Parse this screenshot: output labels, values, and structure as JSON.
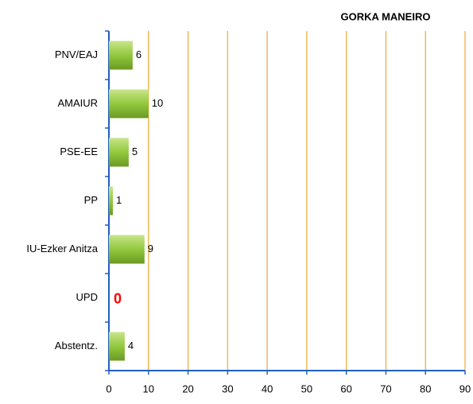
{
  "chart_data": {
    "type": "bar",
    "orientation": "horizontal",
    "title": "GORKA MANEIRO",
    "categories": [
      "PNV/EAJ",
      "AMAIUR",
      "PSE-EE",
      "PP",
      "IU-Ezker Anitza",
      "UPD",
      "Abstentz."
    ],
    "values": [
      6,
      10,
      5,
      1,
      9,
      0,
      4
    ],
    "color": "#92c83e",
    "xlim": [
      0,
      90
    ],
    "xticks": [
      0,
      10,
      20,
      30,
      40,
      50,
      60,
      70,
      80,
      90
    ],
    "grid": true,
    "grid_color": "#f0a830"
  }
}
